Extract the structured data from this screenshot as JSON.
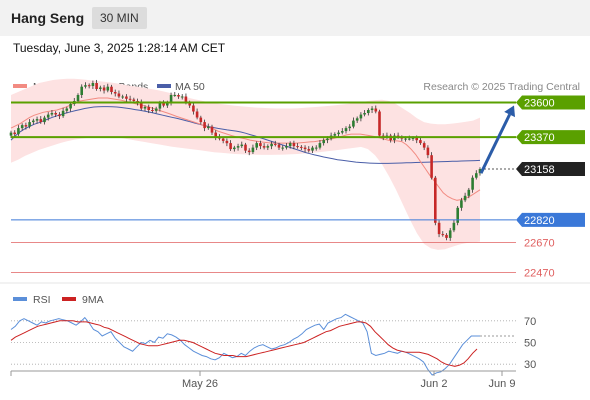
{
  "header": {
    "instrument": "Hang Seng",
    "interval": "30 MIN",
    "datetime": "Tuesday, June 3, 2025 1:28:14 AM CET"
  },
  "legend": {
    "ma20": "MA 20 + Bollinger Bands",
    "ma50": "MA 50",
    "source": "Research © 2025 Trading Central",
    "rsi": "RSI",
    "ma9": "9MA"
  },
  "colors": {
    "candle_up": "#2e7d32",
    "candle_down": "#c62828",
    "ma20": "#f28b82",
    "ma50": "#4a5ea8",
    "bollinger_fill": "#fde2e2",
    "resistance": "#5aa000",
    "support": "#3a78d8",
    "support_weak": "#e06060",
    "current_price": "#222222",
    "rsi": "#5b8fd9",
    "rsi_ma9": "#cc2222",
    "arrow": "#2b5ca8"
  },
  "chart_data": [
    {
      "type": "candlestick",
      "name": "price",
      "ylim": [
        22400,
        23650
      ],
      "x_ticks": [
        "May 26",
        "Jun 2",
        "Jun 9"
      ],
      "price_levels": [
        {
          "value": 23600,
          "label": "23600",
          "kind": "resistance"
        },
        {
          "value": 23370,
          "label": "23370",
          "kind": "resistance"
        },
        {
          "value": 23158,
          "label": "23158",
          "kind": "current"
        },
        {
          "value": 22820,
          "label": "22820",
          "kind": "support"
        },
        {
          "value": 22670,
          "label": "22670",
          "kind": "support-secondary"
        },
        {
          "value": 22470,
          "label": "22470",
          "kind": "support-secondary"
        }
      ],
      "forecast_arrow": {
        "from": 23130,
        "to": 23580
      },
      "close": [
        23400,
        23390,
        23430,
        23450,
        23440,
        23470,
        23480,
        23490,
        23470,
        23500,
        23520,
        23530,
        23520,
        23510,
        23545,
        23560,
        23590,
        23610,
        23650,
        23705,
        23715,
        23710,
        23730,
        23690,
        23700,
        23680,
        23705,
        23670,
        23660,
        23640,
        23640,
        23625,
        23620,
        23610,
        23600,
        23560,
        23570,
        23550,
        23545,
        23560,
        23595,
        23580,
        23600,
        23650,
        23650,
        23640,
        23640,
        23600,
        23580,
        23540,
        23500,
        23470,
        23430,
        23440,
        23400,
        23370,
        23360,
        23345,
        23330,
        23290,
        23300,
        23310,
        23320,
        23280,
        23270,
        23300,
        23330,
        23310,
        23300,
        23310,
        23325,
        23320,
        23300,
        23300,
        23310,
        23330,
        23310,
        23305,
        23300,
        23290,
        23280,
        23300,
        23300,
        23330,
        23350,
        23360,
        23380,
        23390,
        23400,
        23410,
        23430,
        23440,
        23480,
        23495,
        23520,
        23530,
        23550,
        23560,
        23540,
        23380,
        23370,
        23380,
        23350,
        23380,
        23370,
        23360,
        23360,
        23360,
        23365,
        23350,
        23330,
        23300,
        23250,
        23100,
        22800,
        22725,
        22720,
        22700,
        22750,
        22800,
        22900,
        22950,
        22980,
        23020,
        23100,
        23130,
        23158
      ],
      "ma20": [
        23430,
        23445,
        23460,
        23480,
        23500,
        23515,
        23525,
        23535,
        23540,
        23545,
        23550,
        23560,
        23570,
        23585,
        23600,
        23610,
        23615,
        23620,
        23625,
        23630,
        23630,
        23630,
        23625,
        23620,
        23615,
        23608,
        23600,
        23592,
        23585,
        23578,
        23570,
        23560,
        23550,
        23540,
        23530,
        23520,
        23508,
        23498,
        23488,
        23478,
        23468,
        23458,
        23445,
        23435,
        23425,
        23410,
        23400,
        23390,
        23380,
        23372,
        23365,
        23358,
        23350,
        23345,
        23340,
        23336,
        23332,
        23330,
        23330,
        23330,
        23330,
        23330,
        23330,
        23332,
        23335,
        23338,
        23340,
        23345,
        23350,
        23355,
        23360,
        23368,
        23376,
        23385,
        23390,
        23390,
        23390,
        23385,
        23380,
        23374,
        23366,
        23358,
        23350,
        23345,
        23345,
        23340,
        23320,
        23290,
        23255,
        23210,
        23165,
        23120,
        23080,
        23040,
        23000,
        22975,
        22960,
        22950,
        22955,
        22965,
        22980,
        23000,
        23020
      ],
      "ma50": [
        23350,
        23380,
        23405,
        23425,
        23440,
        23455,
        23465,
        23478,
        23490,
        23502,
        23512,
        23522,
        23530,
        23538,
        23546,
        23553,
        23560,
        23565,
        23570,
        23572,
        23573,
        23573,
        23572,
        23570,
        23567,
        23563,
        23558,
        23553,
        23548,
        23543,
        23537,
        23530,
        23523,
        23516,
        23509,
        23502,
        23495,
        23488,
        23480,
        23472,
        23463,
        23455,
        23447,
        23440,
        23434,
        23428,
        23423,
        23418,
        23414,
        23410,
        23404,
        23396,
        23387,
        23378,
        23368,
        23358,
        23348,
        23338,
        23328,
        23318,
        23308,
        23298,
        23288,
        23278,
        23268,
        23260,
        23252,
        23245,
        23238,
        23232,
        23226,
        23220,
        23216,
        23212,
        23208,
        23204,
        23201,
        23199,
        23197,
        23196,
        23195,
        23195,
        23195,
        23196,
        23197,
        23198,
        23199,
        23200,
        23201,
        23202,
        23203,
        23204,
        23205,
        23206,
        23207,
        23208,
        23209,
        23210,
        23211,
        23212,
        23213,
        23214,
        23215
      ],
      "bollinger_upper": [
        23650,
        23670,
        23690,
        23710,
        23730,
        23740,
        23750,
        23755,
        23758,
        23758,
        23755,
        23750,
        23745,
        23740,
        23735,
        23728,
        23720,
        23712,
        23705,
        23698,
        23690,
        23682,
        23672,
        23660,
        23648,
        23636,
        23624,
        23614,
        23604,
        23596,
        23590,
        23584,
        23578,
        23574,
        23570,
        23566,
        23564,
        23562,
        23560,
        23560,
        23560,
        23562,
        23565,
        23568,
        23572,
        23576,
        23580,
        23585,
        23590,
        23596,
        23602,
        23610,
        23616,
        23618,
        23610,
        23590,
        23560,
        23530,
        23495,
        23470,
        23460,
        23455,
        23455,
        23460,
        23465,
        23472,
        23480,
        23500
      ],
      "bollinger_lower": [
        23200,
        23220,
        23245,
        23265,
        23285,
        23300,
        23315,
        23330,
        23342,
        23352,
        23360,
        23365,
        23368,
        23370,
        23370,
        23368,
        23362,
        23354,
        23346,
        23338,
        23330,
        23322,
        23314,
        23306,
        23300,
        23294,
        23288,
        23282,
        23276,
        23270,
        23266,
        23262,
        23258,
        23256,
        23254,
        23253,
        23252,
        23252,
        23253,
        23254,
        23256,
        23258,
        23262,
        23266,
        23270,
        23275,
        23280,
        23286,
        23292,
        23298,
        23305,
        23290,
        23250,
        23190,
        23110,
        23020,
        22920,
        22820,
        22730,
        22660,
        22630,
        22620,
        22625,
        22640,
        22655,
        22665,
        22670,
        22675
      ]
    },
    {
      "type": "line",
      "name": "rsi",
      "ylim": [
        20,
        80
      ],
      "y_ticks": [
        70,
        50,
        30
      ],
      "series": [
        {
          "name": "RSI",
          "values": [
            62,
            65,
            70,
            72,
            70,
            68,
            66,
            69,
            68,
            70,
            71,
            72,
            71,
            70,
            68,
            66,
            69,
            73,
            68,
            62,
            60,
            56,
            58,
            60,
            54,
            50,
            46,
            44,
            42,
            46,
            50,
            49,
            52,
            50,
            55,
            54,
            58,
            57,
            55,
            52,
            48,
            45,
            42,
            40,
            38,
            37,
            35,
            34,
            36,
            40,
            38,
            36,
            37,
            40,
            38,
            42,
            45,
            47,
            48,
            46,
            44,
            45,
            47,
            48,
            50,
            53,
            55,
            58,
            62,
            64,
            66,
            67,
            62,
            68,
            70,
            72,
            73,
            76,
            74,
            72,
            70,
            68,
            60,
            40,
            38,
            39,
            40,
            42,
            41,
            40,
            42,
            41,
            39,
            37,
            35,
            32,
            25,
            20,
            22,
            23,
            26,
            30,
            36,
            42,
            48,
            52,
            56,
            56,
            56
          ]
        },
        {
          "name": "9MA",
          "values": [
            52,
            55,
            57,
            59,
            61,
            63,
            65,
            66,
            67,
            68,
            69,
            70,
            70,
            70,
            70,
            69,
            69,
            69,
            68,
            67,
            66,
            64,
            63,
            61,
            59,
            57,
            55,
            53,
            51,
            49,
            48,
            47,
            47,
            47,
            48,
            49,
            50,
            51,
            52,
            52,
            51,
            50,
            48,
            46,
            44,
            42,
            40,
            39,
            38,
            38,
            38,
            37,
            37,
            37,
            38,
            39,
            40,
            41,
            42,
            43,
            44,
            45,
            46,
            47,
            48,
            49,
            50,
            52,
            54,
            56,
            58,
            60,
            61,
            63,
            65,
            66,
            67,
            68,
            69,
            69,
            68,
            65,
            60,
            56,
            52,
            48,
            45,
            43,
            42,
            41,
            41,
            41,
            41,
            40,
            39,
            37,
            35,
            32,
            30,
            29,
            28,
            29,
            31,
            35,
            40,
            44
          ]
        }
      ]
    }
  ]
}
